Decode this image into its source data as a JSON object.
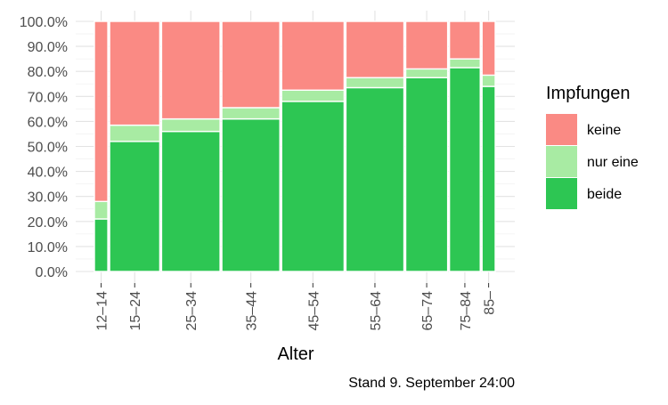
{
  "chart_data": {
    "type": "bar",
    "variant": "mosaic-stacked-percent",
    "xlabel": "Alter",
    "ylabel": "",
    "ylim": [
      0,
      1
    ],
    "yticks": [
      "0.0%",
      "10.0%",
      "20.0%",
      "30.0%",
      "40.0%",
      "50.0%",
      "60.0%",
      "70.0%",
      "80.0%",
      "90.0%",
      "100.0%"
    ],
    "categories": [
      "12–14",
      "15–24",
      "25–34",
      "35–44",
      "45–54",
      "55–64",
      "65–74",
      "75–84",
      "85–"
    ],
    "category_share": [
      0.0345,
      0.1178,
      0.1367,
      0.1356,
      0.1458,
      0.1356,
      0.0992,
      0.0739,
      0.0339
    ],
    "series": [
      {
        "name": "beide",
        "color": "#2dc653",
        "values": [
          0.21,
          0.52,
          0.56,
          0.61,
          0.68,
          0.735,
          0.775,
          0.815,
          0.74
        ]
      },
      {
        "name": "nur eine",
        "color": "#a8eba3",
        "values": [
          0.07,
          0.065,
          0.05,
          0.045,
          0.045,
          0.04,
          0.035,
          0.035,
          0.045
        ]
      },
      {
        "name": "keine",
        "color": "#fa8a84",
        "values": [
          0.72,
          0.415,
          0.39,
          0.345,
          0.275,
          0.225,
          0.19,
          0.15,
          0.215
        ]
      }
    ],
    "legend": {
      "title": "Impfungen",
      "position": "right",
      "items": [
        {
          "label": "keine",
          "color": "#fa8a84"
        },
        {
          "label": "nur eine",
          "color": "#a8eba3"
        },
        {
          "label": "beide",
          "color": "#2dc653"
        }
      ]
    },
    "caption": "Stand 9. September 24:00",
    "grid": true
  }
}
